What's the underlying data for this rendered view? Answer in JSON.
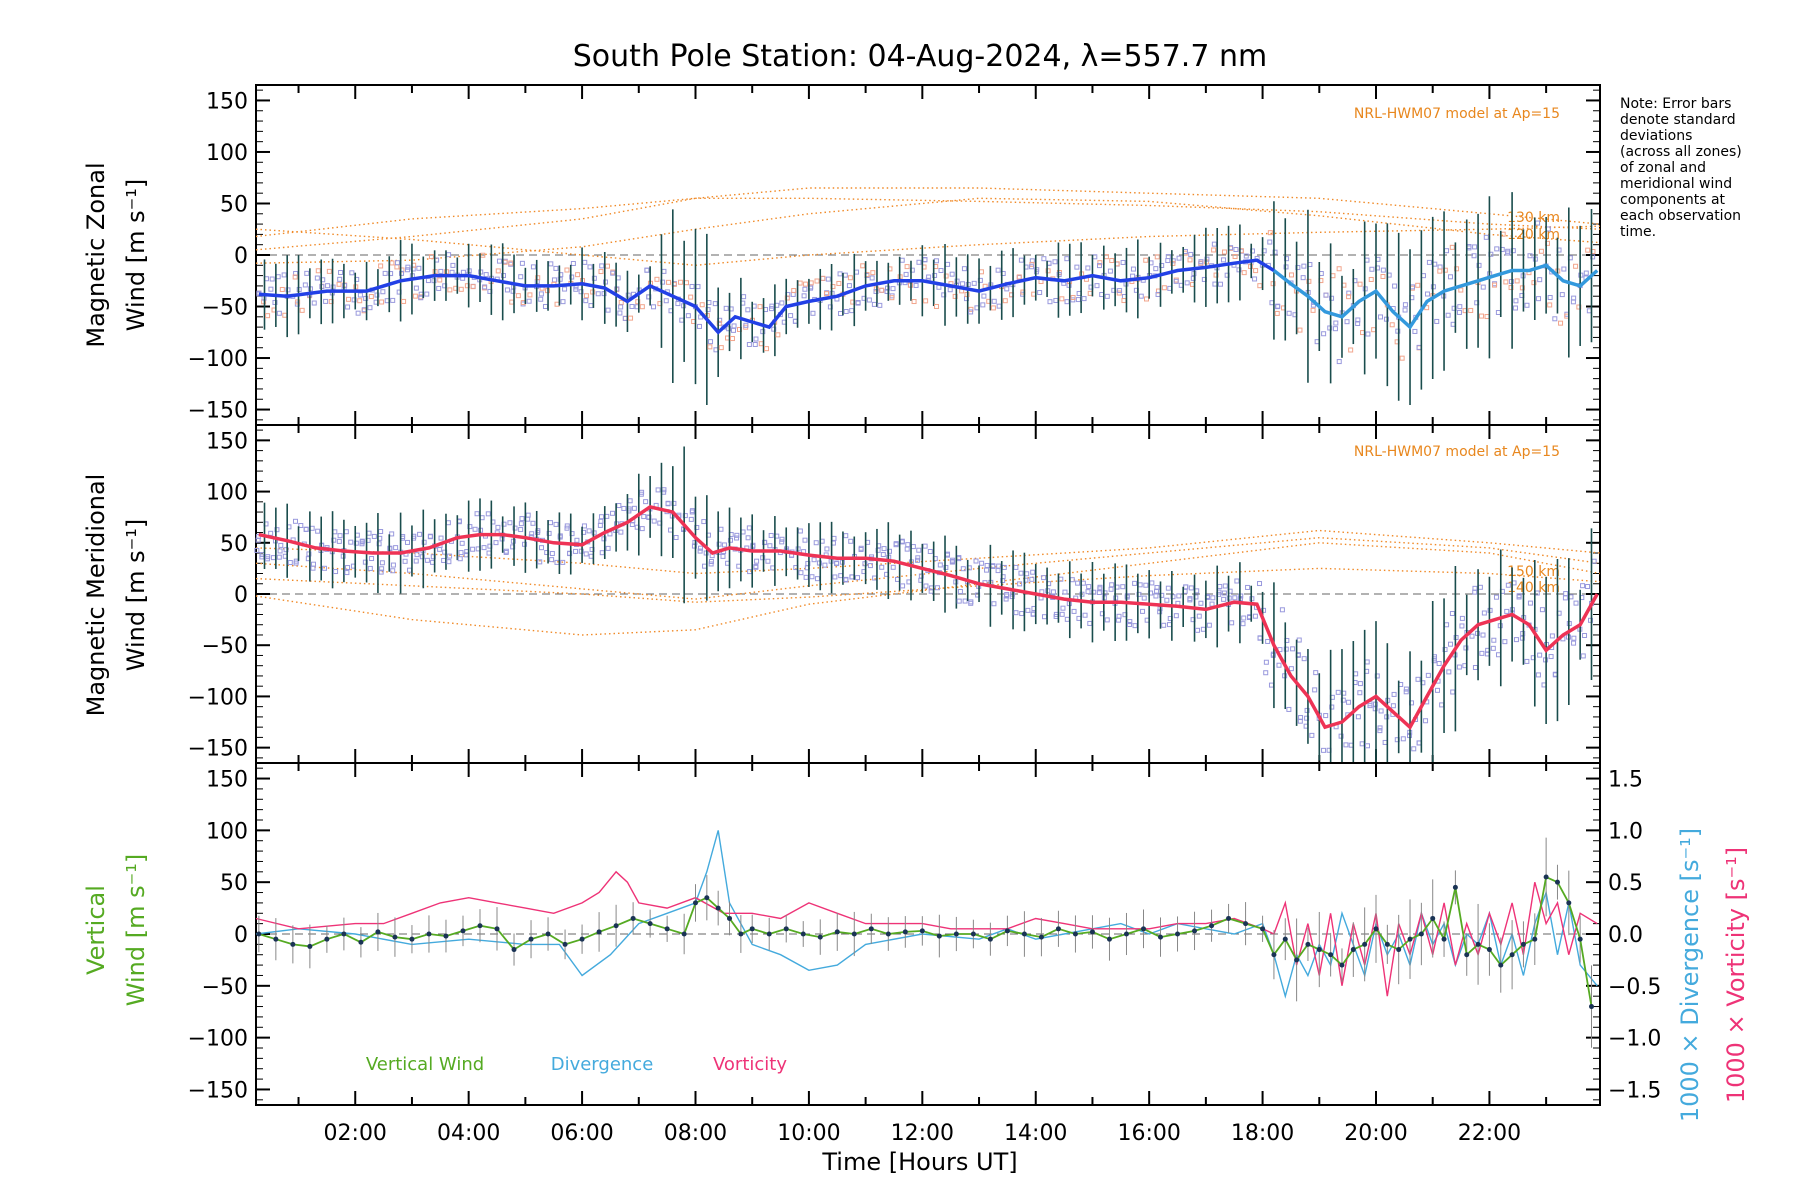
{
  "chart_data": [
    {
      "type": "line",
      "panel": "zonal",
      "title": "South Pole Station: 04-Aug-2024, λ=557.7 nm",
      "ylabel_line1": "Magnetic Zonal",
      "ylabel_line2": "Wind [m s⁻¹]",
      "ylim": [
        -165,
        165
      ],
      "yticks": [
        150,
        100,
        50,
        0,
        -50,
        -100,
        -150
      ],
      "ytick_labels": [
        "150",
        "100",
        "50",
        "0",
        "−50",
        "−100",
        "−150"
      ],
      "xlim": [
        0.25,
        23.95
      ],
      "model_label": "NRL-HWM07 model at Ap=15",
      "model_altitudes": [
        "130 km",
        "120 km"
      ],
      "colors": {
        "mean": "#2240e6",
        "mean_late": "#3399dd",
        "errbar": "#1a4d4d",
        "scatter": "#9999dd",
        "scatter2": "#f2a58c",
        "model": "#f08a28"
      },
      "series": [
        {
          "name": "Mean Zonal Wind",
          "x": [
            0.3,
            0.8,
            1.5,
            2.2,
            2.8,
            3.4,
            4.0,
            4.5,
            5.0,
            5.5,
            6.0,
            6.4,
            6.8,
            7.2,
            7.6,
            8.0,
            8.4,
            8.7,
            9.0,
            9.3,
            9.6,
            10.0,
            10.5,
            11.0,
            11.5,
            12.0,
            12.5,
            13.0,
            13.5,
            14.0,
            14.5,
            15.0,
            15.5,
            16.0,
            16.5,
            17.0,
            17.5,
            17.9,
            18.2,
            18.5,
            18.8,
            19.1,
            19.4,
            19.7,
            20.0,
            20.3,
            20.6,
            20.9,
            21.2,
            21.5,
            21.8,
            22.1,
            22.4,
            22.7,
            23.0,
            23.3,
            23.6,
            23.9
          ],
          "values": [
            -38,
            -40,
            -35,
            -35,
            -25,
            -20,
            -20,
            -25,
            -30,
            -30,
            -28,
            -32,
            -45,
            -30,
            -40,
            -50,
            -75,
            -60,
            -65,
            -70,
            -50,
            -45,
            -40,
            -30,
            -25,
            -25,
            -30,
            -35,
            -28,
            -22,
            -25,
            -20,
            -25,
            -22,
            -15,
            -12,
            -8,
            -5,
            -15,
            -28,
            -40,
            -55,
            -60,
            -45,
            -35,
            -55,
            -70,
            -45,
            -35,
            -30,
            -25,
            -20,
            -15,
            -15,
            -10,
            -25,
            -30,
            -15
          ]
        }
      ],
      "model_curves": [
        {
          "x": [
            0.25,
            3,
            6,
            8,
            10,
            13,
            16,
            19,
            22,
            23.95
          ],
          "values": [
            -8,
            -5,
            8,
            25,
            40,
            55,
            52,
            38,
            20,
            12
          ]
        },
        {
          "x": [
            0.25,
            3,
            6,
            8,
            10,
            13,
            16,
            19,
            22,
            23.95
          ],
          "values": [
            18,
            35,
            45,
            55,
            55,
            52,
            48,
            42,
            30,
            25
          ]
        },
        {
          "x": [
            0.25,
            3,
            6,
            8,
            10,
            13,
            16,
            19,
            22,
            23.95
          ],
          "values": [
            5,
            18,
            35,
            55,
            65,
            65,
            60,
            55,
            40,
            30
          ]
        },
        {
          "x": [
            0.25,
            3,
            6,
            8,
            10,
            13,
            16,
            19,
            22,
            23.95
          ],
          "values": [
            25,
            15,
            0,
            -10,
            0,
            10,
            18,
            22,
            25,
            28
          ]
        }
      ]
    },
    {
      "type": "line",
      "panel": "meridional",
      "ylabel_line1": "Magnetic Meridional",
      "ylabel_line2": "Wind [m s⁻¹]",
      "ylim": [
        -165,
        165
      ],
      "yticks": [
        150,
        100,
        50,
        0,
        -50,
        -100,
        -150
      ],
      "ytick_labels": [
        "150",
        "100",
        "50",
        "0",
        "−50",
        "−100",
        "−150"
      ],
      "xlim": [
        0.25,
        23.95
      ],
      "model_label": "NRL-HWM07 model at Ap=15",
      "model_altitudes": [
        "150 km",
        "140 km"
      ],
      "colors": {
        "mean": "#ee3355",
        "errbar": "#1a4d4d",
        "scatter": "#9999dd",
        "model": "#f08a28"
      },
      "series": [
        {
          "name": "Mean Meridional Wind",
          "x": [
            0.3,
            0.8,
            1.3,
            1.8,
            2.3,
            2.8,
            3.3,
            3.8,
            4.2,
            4.6,
            5.0,
            5.5,
            6.0,
            6.4,
            6.8,
            7.2,
            7.6,
            8.0,
            8.3,
            8.6,
            9.0,
            9.5,
            10.0,
            10.5,
            11.0,
            11.5,
            12.0,
            12.5,
            13.0,
            13.5,
            14.0,
            14.5,
            15.0,
            15.5,
            16.0,
            16.5,
            17.0,
            17.5,
            17.9,
            18.2,
            18.5,
            18.8,
            19.1,
            19.4,
            19.7,
            20.0,
            20.3,
            20.6,
            20.9,
            21.2,
            21.5,
            21.8,
            22.1,
            22.4,
            22.7,
            23.0,
            23.3,
            23.6,
            23.9
          ],
          "values": [
            58,
            52,
            45,
            42,
            40,
            40,
            45,
            55,
            58,
            58,
            55,
            50,
            48,
            60,
            70,
            85,
            80,
            55,
            40,
            45,
            42,
            42,
            38,
            35,
            35,
            32,
            25,
            18,
            10,
            5,
            0,
            -5,
            -8,
            -8,
            -10,
            -12,
            -15,
            -8,
            -10,
            -50,
            -80,
            -100,
            -130,
            -125,
            -110,
            -100,
            -115,
            -130,
            -100,
            -70,
            -45,
            -30,
            -25,
            -20,
            -30,
            -55,
            -40,
            -30,
            0
          ]
        }
      ],
      "model_curves": [
        {
          "x": [
            0.25,
            3,
            6,
            8,
            10,
            13,
            16,
            19,
            22,
            23.95
          ],
          "values": [
            -2,
            -25,
            -40,
            -35,
            -10,
            10,
            30,
            50,
            40,
            20
          ]
        },
        {
          "x": [
            0.25,
            3,
            6,
            8,
            10,
            13,
            16,
            19,
            22,
            23.95
          ],
          "values": [
            30,
            20,
            5,
            -5,
            8,
            25,
            40,
            55,
            45,
            30
          ]
        },
        {
          "x": [
            0.25,
            3,
            6,
            8,
            10,
            13,
            16,
            19,
            22,
            23.95
          ],
          "values": [
            15,
            8,
            0,
            -8,
            -3,
            8,
            18,
            25,
            20,
            12
          ]
        },
        {
          "x": [
            0.25,
            3,
            6,
            8,
            10,
            13,
            16,
            19,
            22,
            23.95
          ],
          "values": [
            45,
            40,
            30,
            20,
            25,
            35,
            45,
            62,
            50,
            40
          ]
        }
      ]
    },
    {
      "type": "line",
      "panel": "vertical",
      "xlabel": "Time [Hours UT]",
      "xticks": [
        2,
        4,
        6,
        8,
        10,
        12,
        14,
        16,
        18,
        20,
        22
      ],
      "xtick_labels": [
        "02:00",
        "04:00",
        "06:00",
        "08:00",
        "10:00",
        "12:00",
        "14:00",
        "16:00",
        "18:00",
        "20:00",
        "22:00"
      ],
      "ylabel_line1": "Vertical",
      "ylabel_line2": "Wind [m s⁻¹]",
      "ylim": [
        -165,
        165
      ],
      "yticks": [
        150,
        100,
        50,
        0,
        -50,
        -100,
        -150
      ],
      "ytick_labels": [
        "150",
        "100",
        "50",
        "0",
        "−50",
        "−100",
        "−150"
      ],
      "right_axis_label_div": "1000 × Divergence [s⁻¹]",
      "right_axis_label_vort": "1000 × Vorticity [s⁻¹]",
      "right_ylim": [
        -1.65,
        1.65
      ],
      "right_yticks": [
        1.5,
        1.0,
        0.5,
        0.0,
        -0.5,
        -1.0,
        -1.5
      ],
      "right_ytick_labels": [
        "1.5",
        "1.0",
        "0.5",
        "0.0",
        "−0.5",
        "−1.0",
        "−1.5"
      ],
      "legend": [
        "Vertical Wind",
        "Divergence",
        "Vorticity"
      ],
      "colors": {
        "vertical": "#55aa22",
        "vertical_pts": "#1a3355",
        "divergence": "#44aadd",
        "vorticity": "#ee3377",
        "errbar": "#888888"
      },
      "series": [
        {
          "name": "Vertical Wind",
          "x": [
            0.3,
            0.6,
            0.9,
            1.2,
            1.5,
            1.8,
            2.1,
            2.4,
            2.7,
            3.0,
            3.3,
            3.6,
            3.9,
            4.2,
            4.5,
            4.8,
            5.1,
            5.4,
            5.7,
            6.0,
            6.3,
            6.6,
            6.9,
            7.2,
            7.5,
            7.8,
            8.0,
            8.2,
            8.4,
            8.6,
            8.8,
            9.0,
            9.3,
            9.6,
            9.9,
            10.2,
            10.5,
            10.8,
            11.1,
            11.4,
            11.7,
            12.0,
            12.3,
            12.6,
            12.9,
            13.2,
            13.5,
            13.8,
            14.1,
            14.4,
            14.7,
            15.0,
            15.3,
            15.6,
            15.9,
            16.2,
            16.5,
            16.8,
            17.1,
            17.4,
            17.7,
            18.0,
            18.2,
            18.4,
            18.6,
            18.8,
            19.0,
            19.2,
            19.4,
            19.6,
            19.8,
            20.0,
            20.2,
            20.4,
            20.6,
            20.8,
            21.0,
            21.2,
            21.4,
            21.6,
            21.8,
            22.0,
            22.2,
            22.4,
            22.6,
            22.8,
            23.0,
            23.2,
            23.4,
            23.6,
            23.8
          ],
          "values": [
            0,
            -5,
            -10,
            -12,
            -5,
            0,
            -8,
            2,
            -3,
            -5,
            0,
            -2,
            3,
            8,
            5,
            -15,
            -5,
            0,
            -10,
            -5,
            2,
            8,
            15,
            10,
            5,
            0,
            30,
            35,
            25,
            15,
            0,
            5,
            0,
            5,
            0,
            -3,
            2,
            0,
            5,
            0,
            2,
            3,
            -2,
            0,
            0,
            -5,
            3,
            0,
            -3,
            5,
            0,
            2,
            -5,
            0,
            5,
            -3,
            0,
            3,
            8,
            15,
            10,
            5,
            -20,
            -5,
            -25,
            -10,
            -15,
            -20,
            -30,
            -15,
            -10,
            5,
            -10,
            -15,
            -5,
            0,
            15,
            -5,
            45,
            -20,
            -10,
            -15,
            -30,
            -20,
            -10,
            -5,
            55,
            50,
            30,
            -5,
            -70
          ]
        },
        {
          "name": "Divergence",
          "x": [
            0.25,
            1.0,
            2.0,
            3.0,
            4.0,
            5.0,
            5.6,
            6.0,
            6.5,
            7.0,
            7.5,
            8.0,
            8.2,
            8.4,
            8.6,
            9.0,
            9.5,
            10.0,
            10.5,
            11.0,
            12.0,
            13.0,
            13.5,
            14.0,
            14.5,
            15.0,
            15.5,
            16.0,
            16.5,
            17.0,
            17.5,
            18.0,
            18.2,
            18.4,
            18.6,
            18.8,
            19.0,
            19.2,
            19.4,
            19.6,
            19.8,
            20.0,
            20.2,
            20.4,
            20.6,
            20.8,
            21.0,
            21.2,
            21.4,
            21.6,
            21.8,
            22.0,
            22.2,
            22.4,
            22.6,
            22.8,
            23.0,
            23.2,
            23.4,
            23.6,
            23.9
          ],
          "values": [
            0.0,
            0.05,
            0.0,
            -0.1,
            -0.05,
            -0.1,
            -0.1,
            -0.4,
            -0.2,
            0.1,
            0.2,
            0.3,
            0.6,
            1.0,
            0.3,
            -0.1,
            -0.2,
            -0.35,
            -0.3,
            -0.1,
            0.0,
            -0.05,
            0.05,
            -0.05,
            0.0,
            0.05,
            0.1,
            0.0,
            0.1,
            0.05,
            0.0,
            0.1,
            -0.2,
            -0.6,
            -0.2,
            -0.4,
            -0.1,
            -0.3,
            0.2,
            -0.1,
            -0.4,
            0.1,
            -0.2,
            0.0,
            -0.3,
            0.2,
            -0.1,
            0.1,
            -0.3,
            0.0,
            -0.1,
            0.2,
            -0.3,
            0.0,
            -0.4,
            0.1,
            0.4,
            -0.2,
            0.3,
            -0.3,
            -0.5
          ]
        },
        {
          "name": "Vorticity",
          "x": [
            0.25,
            1.0,
            2.0,
            2.5,
            3.0,
            3.5,
            4.0,
            4.5,
            5.0,
            5.5,
            6.0,
            6.3,
            6.6,
            6.8,
            7.0,
            7.5,
            8.0,
            8.5,
            9.0,
            9.5,
            10.0,
            10.5,
            11.0,
            12.0,
            12.5,
            13.0,
            13.5,
            14.0,
            14.5,
            15.0,
            15.5,
            16.0,
            16.5,
            17.0,
            17.5,
            18.0,
            18.2,
            18.4,
            18.6,
            18.8,
            19.0,
            19.2,
            19.4,
            19.6,
            19.8,
            20.0,
            20.2,
            20.4,
            20.6,
            20.8,
            21.0,
            21.2,
            21.4,
            21.6,
            21.8,
            22.0,
            22.2,
            22.4,
            22.6,
            22.8,
            23.0,
            23.2,
            23.4,
            23.6,
            23.9
          ],
          "values": [
            0.15,
            0.05,
            0.1,
            0.1,
            0.2,
            0.3,
            0.35,
            0.3,
            0.25,
            0.2,
            0.3,
            0.4,
            0.6,
            0.5,
            0.3,
            0.25,
            0.35,
            0.2,
            0.2,
            0.15,
            0.3,
            0.2,
            0.1,
            0.1,
            0.05,
            0.05,
            0.05,
            0.15,
            0.1,
            0.05,
            0.05,
            0.05,
            0.1,
            0.1,
            0.15,
            0.05,
            0.0,
            0.3,
            -0.3,
            0.1,
            -0.4,
            0.2,
            -0.5,
            0.1,
            -0.3,
            0.2,
            -0.6,
            0.1,
            -0.2,
            0.2,
            -0.2,
            0.3,
            -0.3,
            0.1,
            -0.2,
            0.2,
            -0.1,
            0.3,
            -0.2,
            0.5,
            0.1,
            0.3,
            -0.2,
            0.2,
            0.1
          ]
        }
      ]
    }
  ],
  "note": {
    "lines": [
      "Note: Error bars",
      "denote standard",
      "deviations",
      "(across all zones)",
      "of zonal and",
      "meridional wind",
      "components at",
      "each observation",
      "time."
    ]
  }
}
